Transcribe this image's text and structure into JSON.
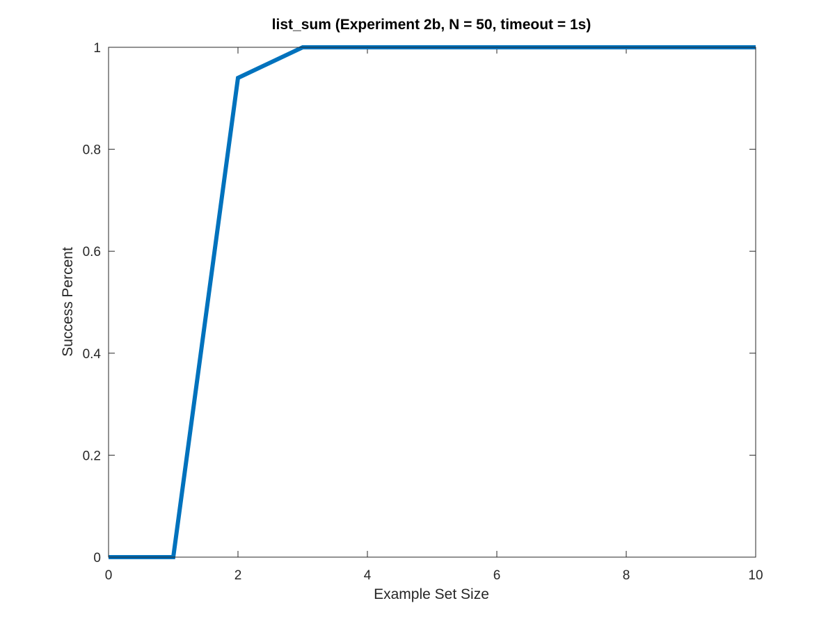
{
  "chart_data": {
    "type": "line",
    "title": "list_sum (Experiment 2b, N = 50, timeout = 1s)",
    "xlabel": "Example Set Size",
    "ylabel": "Success Percent",
    "xlim": [
      0,
      10
    ],
    "ylim": [
      0,
      1
    ],
    "x_ticks": [
      0,
      2,
      4,
      6,
      8,
      10
    ],
    "y_ticks": [
      0,
      0.2,
      0.4,
      0.6,
      0.8,
      1
    ],
    "x_tick_labels": [
      "0",
      "2",
      "4",
      "6",
      "8",
      "10"
    ],
    "y_tick_labels": [
      "0",
      "0.2",
      "0.4",
      "0.6",
      "0.8",
      "1"
    ],
    "grid": false,
    "box": true,
    "series": [
      {
        "x": [
          0,
          1,
          2,
          3,
          4,
          5,
          6,
          7,
          8,
          9,
          10
        ],
        "y": [
          0,
          0,
          0.94,
          1,
          1,
          1,
          1,
          1,
          1,
          1,
          1
        ],
        "color": "#0072BD"
      }
    ]
  },
  "colors": {
    "axes": "#262626",
    "line": "#0072BD",
    "background": "#ffffff"
  }
}
